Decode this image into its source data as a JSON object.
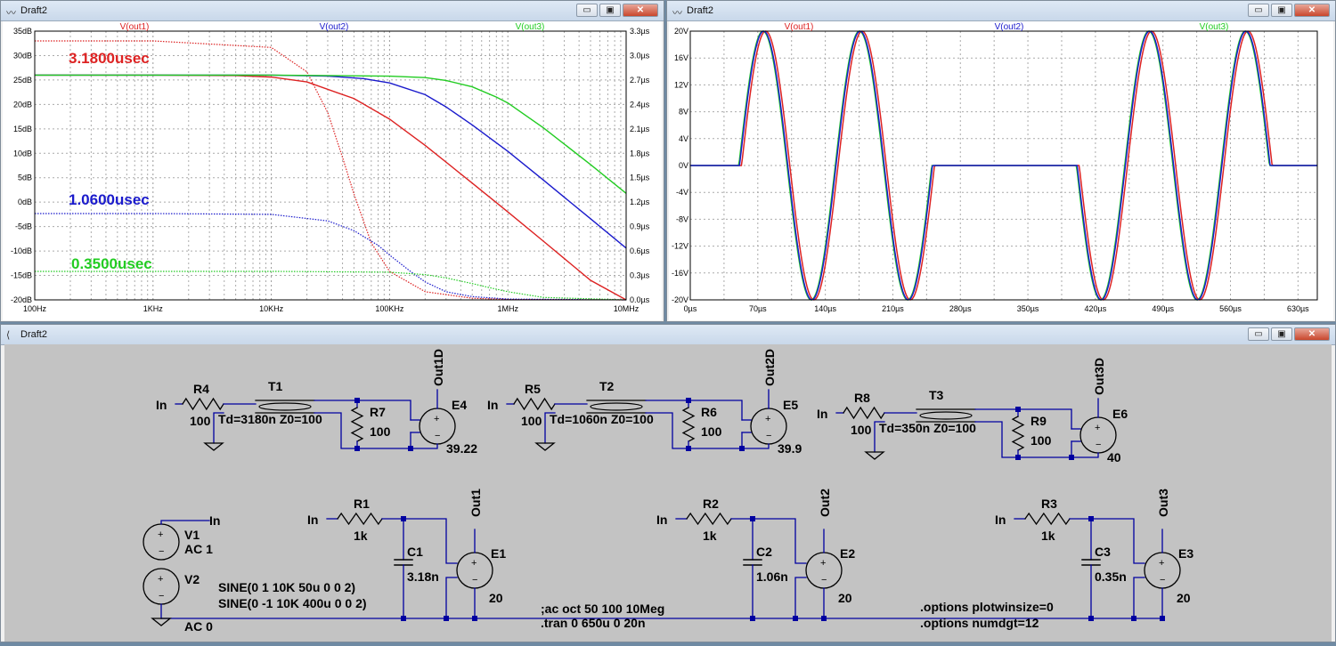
{
  "windows": {
    "ac": {
      "title": "Draft2"
    },
    "tran": {
      "title": "Draft2"
    },
    "schematic": {
      "title": "Draft2"
    }
  },
  "window_buttons": {
    "minimize": "▭",
    "restore": "▣",
    "close": "✕"
  },
  "colors": {
    "out1": "#dd2222",
    "out2": "#1a1acc",
    "out3": "#22cc22",
    "wire": "#0000a0",
    "plot_bg": "#ffffff",
    "schem_bg": "#c3c3c3"
  },
  "chart_data": [
    {
      "type": "line",
      "xscale": "log",
      "xlim_hz": [
        100,
        10000000
      ],
      "x_ticks": [
        "100Hz",
        "1KHz",
        "10KHz",
        "100KHz",
        "1MHz",
        "10MHz"
      ],
      "y_ticks": [
        "35dB",
        "30dB",
        "25dB",
        "20dB",
        "15dB",
        "10dB",
        "5dB",
        "0dB",
        "-5dB",
        "-10dB",
        "-15dB",
        "-20dB"
      ],
      "ylim_db": [
        -20,
        35
      ],
      "y2_ticks": [
        "3.3µs",
        "3.0µs",
        "2.7µs",
        "2.4µs",
        "2.1µs",
        "1.8µs",
        "1.5µs",
        "1.2µs",
        "0.9µs",
        "0.6µs",
        "0.3µs",
        "0.0µs"
      ],
      "ylim2_us": [
        0,
        3.3
      ],
      "grid": true,
      "series": [
        {
          "name": "V(out1)",
          "color": "#dd2222",
          "magnitude_db": {
            "x_hz": [
              100,
              1000,
              5000,
              10000,
              20000,
              50000,
              100000,
              200000,
              500000,
              1000000,
              2000000,
              5000000,
              10000000
            ],
            "y": [
              26,
              26,
              25.9,
              25.6,
              24.6,
              21.2,
              17.0,
              11.6,
              3.9,
              -2,
              -8,
              -16,
              -20
            ]
          },
          "group_delay_us": {
            "x_hz": [
              100,
              1000,
              10000,
              20000,
              30000,
              40000,
              50000,
              70000,
              100000,
              200000,
              500000,
              1000000,
              10000000
            ],
            "y": [
              3.18,
              3.18,
              3.1,
              2.8,
              2.3,
              1.75,
              1.3,
              0.7,
              0.35,
              0.1,
              0.02,
              0.005,
              0
            ]
          }
        },
        {
          "name": "V(out2)",
          "color": "#1a1acc",
          "magnitude_db": {
            "x_hz": [
              100,
              1000,
              10000,
              30000,
              60000,
              100000,
              200000,
              300000,
              500000,
              1000000,
              2000000,
              5000000,
              10000000
            ],
            "y": [
              26,
              26,
              26,
              25.8,
              25.3,
              24.4,
              22.0,
              19.5,
              15.8,
              10.4,
              4.5,
              -3.4,
              -9.4
            ]
          },
          "group_delay_us": {
            "x_hz": [
              100,
              1000,
              10000,
              30000,
              50000,
              80000,
              100000,
              150000,
              200000,
              300000,
              500000,
              1000000,
              10000000
            ],
            "y": [
              1.06,
              1.06,
              1.05,
              0.97,
              0.85,
              0.67,
              0.55,
              0.35,
              0.22,
              0.1,
              0.04,
              0.01,
              0
            ]
          }
        },
        {
          "name": "V(out3)",
          "color": "#22cc22",
          "magnitude_db": {
            "x_hz": [
              100,
              1000,
              10000,
              100000,
              200000,
              300000,
              500000,
              800000,
              1000000,
              2000000,
              5000000,
              10000000
            ],
            "y": [
              26,
              26,
              26,
              25.8,
              25.5,
              24.9,
              23.6,
              21.5,
              20.3,
              15.2,
              7.7,
              1.8
            ]
          },
          "group_delay_us": {
            "x_hz": [
              100,
              1000,
              10000,
              100000,
              200000,
              300000,
              500000,
              700000,
              1000000,
              2000000,
              10000000
            ],
            "y": [
              0.35,
              0.35,
              0.35,
              0.34,
              0.31,
              0.27,
              0.2,
              0.15,
              0.1,
              0.03,
              0
            ]
          }
        }
      ],
      "annotations": [
        {
          "text": "3.1800usec",
          "color": "#dd2222"
        },
        {
          "text": "1.0600usec",
          "color": "#1a1acc"
        },
        {
          "text": "0.3500usec",
          "color": "#22cc22"
        }
      ]
    },
    {
      "type": "line",
      "xlim_us": [
        0,
        650
      ],
      "x_ticks": [
        "0µs",
        "70µs",
        "140µs",
        "210µs",
        "280µs",
        "350µs",
        "420µs",
        "490µs",
        "560µs",
        "630µs"
      ],
      "y_ticks": [
        "20V",
        "16V",
        "12V",
        "8V",
        "4V",
        "0V",
        "-4V",
        "-8V",
        "-12V",
        "-16V",
        "-20V"
      ],
      "ylim_v": [
        -20,
        20
      ],
      "grid": true,
      "sine_bursts": [
        {
          "start_us": 50,
          "end_us": 250,
          "freq_khz": 10,
          "amplitude_v": 20,
          "phase": "positive"
        },
        {
          "start_us": 400,
          "end_us": 600,
          "freq_khz": 10,
          "amplitude_v": 20,
          "phase": "negative"
        }
      ],
      "series": [
        {
          "name": "V(out1)",
          "color": "#dd2222",
          "delay_us": 3.18
        },
        {
          "name": "V(out2)",
          "color": "#1a1acc",
          "delay_us": 1.06
        },
        {
          "name": "V(out3)",
          "color": "#22cc22",
          "delay_us": 0.35
        }
      ]
    }
  ],
  "schematic": {
    "top_row": [
      {
        "in": "In",
        "r_in": "R4",
        "r_in_val": "100",
        "tline": "T1",
        "tline_params": "Td=3180n Z0=100",
        "r_term": "R7",
        "r_term_val": "100",
        "e": "E4",
        "e_gain": "39.22",
        "out": "Out1D"
      },
      {
        "in": "In",
        "r_in": "R5",
        "r_in_val": "100",
        "tline": "T2",
        "tline_params": "Td=1060n Z0=100",
        "r_term": "R6",
        "r_term_val": "100",
        "e": "E5",
        "e_gain": "39.9",
        "out": "Out2D"
      },
      {
        "in": "In",
        "r_in": "R8",
        "r_in_val": "100",
        "tline": "T3",
        "tline_params": "Td=350n Z0=100",
        "r_term": "R9",
        "r_term_val": "100",
        "e": "E6",
        "e_gain": "40",
        "out": "Out3D"
      }
    ],
    "bottom_row": [
      {
        "in": "In",
        "r": "R1",
        "r_val": "1k",
        "c": "C1",
        "c_val": "3.18n",
        "e": "E1",
        "e_gain": "20",
        "out": "Out1"
      },
      {
        "in": "In",
        "r": "R2",
        "r_val": "1k",
        "c": "C2",
        "c_val": "1.06n",
        "e": "E2",
        "e_gain": "20",
        "out": "Out2"
      },
      {
        "in": "In",
        "r": "R3",
        "r_val": "1k",
        "c": "C3",
        "c_val": "0.35n",
        "e": "E3",
        "e_gain": "20",
        "out": "Out3"
      }
    ],
    "sources": {
      "v1": "V1",
      "v1_ac": "AC 1",
      "v2": "V2",
      "v2_ac": "AC 0",
      "in_label": "In",
      "sine1": "SINE(0 1 10K 50u 0 0 2)",
      "sine2": "SINE(0 -1 10K 400u 0 0 2)"
    },
    "directives": {
      "ac": ";ac oct 50 100 10Meg",
      "tran": ".tran 0 650u 0 20n",
      "opt1": ".options plotwinsize=0",
      "opt2": ".options numdgt=12"
    }
  }
}
